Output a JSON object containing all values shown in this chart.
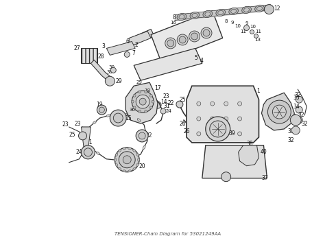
{
  "title": "TENSIONER-Chain Diagram for 53021249AA",
  "background_color": "#ffffff",
  "line_color": "#333333",
  "label_color": "#111111",
  "fig_width": 4.9,
  "fig_height": 3.6,
  "dpi": 100
}
